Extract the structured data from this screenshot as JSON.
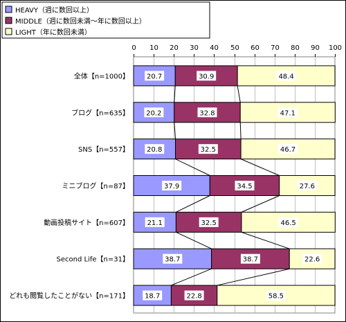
{
  "chart_data": {
    "type": "bar",
    "orientation": "horizontal",
    "stacked": true,
    "percent": true,
    "xlim": [
      0,
      100
    ],
    "x_ticks": [
      "0",
      "10",
      "20",
      "30",
      "40",
      "50",
      "60",
      "70",
      "80",
      "90",
      "100"
    ],
    "categories": [
      "全体【n=1000】",
      "ブログ【n=635】",
      "SNS【n=557】",
      "ミニブログ【n=87】",
      "動画投稿サイト【n=607】",
      "Second Life【n=31】",
      "どれも閲覧したことがない【n=171】"
    ],
    "series": [
      {
        "name": "HEAVY（週に数回以上）",
        "color": "#9999ff",
        "values": [
          20.7,
          20.2,
          20.8,
          37.9,
          21.1,
          38.7,
          18.7
        ]
      },
      {
        "name": "MIDDLE（週に数回未満～年に数回以上）",
        "color": "#993366",
        "values": [
          30.9,
          32.8,
          32.5,
          34.5,
          32.5,
          38.7,
          22.8
        ]
      },
      {
        "name": "LIGHT（年に数回未満）",
        "color": "#ffffcc",
        "values": [
          48.4,
          47.1,
          46.7,
          27.6,
          46.5,
          22.6,
          58.5
        ]
      }
    ],
    "value_labels": [
      [
        "20.7",
        "30.9",
        "48.4"
      ],
      [
        "20.2",
        "32.8",
        "47.1"
      ],
      [
        "20.8",
        "32.5",
        "46.7"
      ],
      [
        "37.9",
        "34.5",
        "27.6"
      ],
      [
        "21.1",
        "32.5",
        "46.5"
      ],
      [
        "38.7",
        "38.7",
        "22.6"
      ],
      [
        "18.7",
        "22.8",
        "58.5"
      ]
    ],
    "series_lines": true,
    "grid": true,
    "legend_position": "top-left"
  }
}
